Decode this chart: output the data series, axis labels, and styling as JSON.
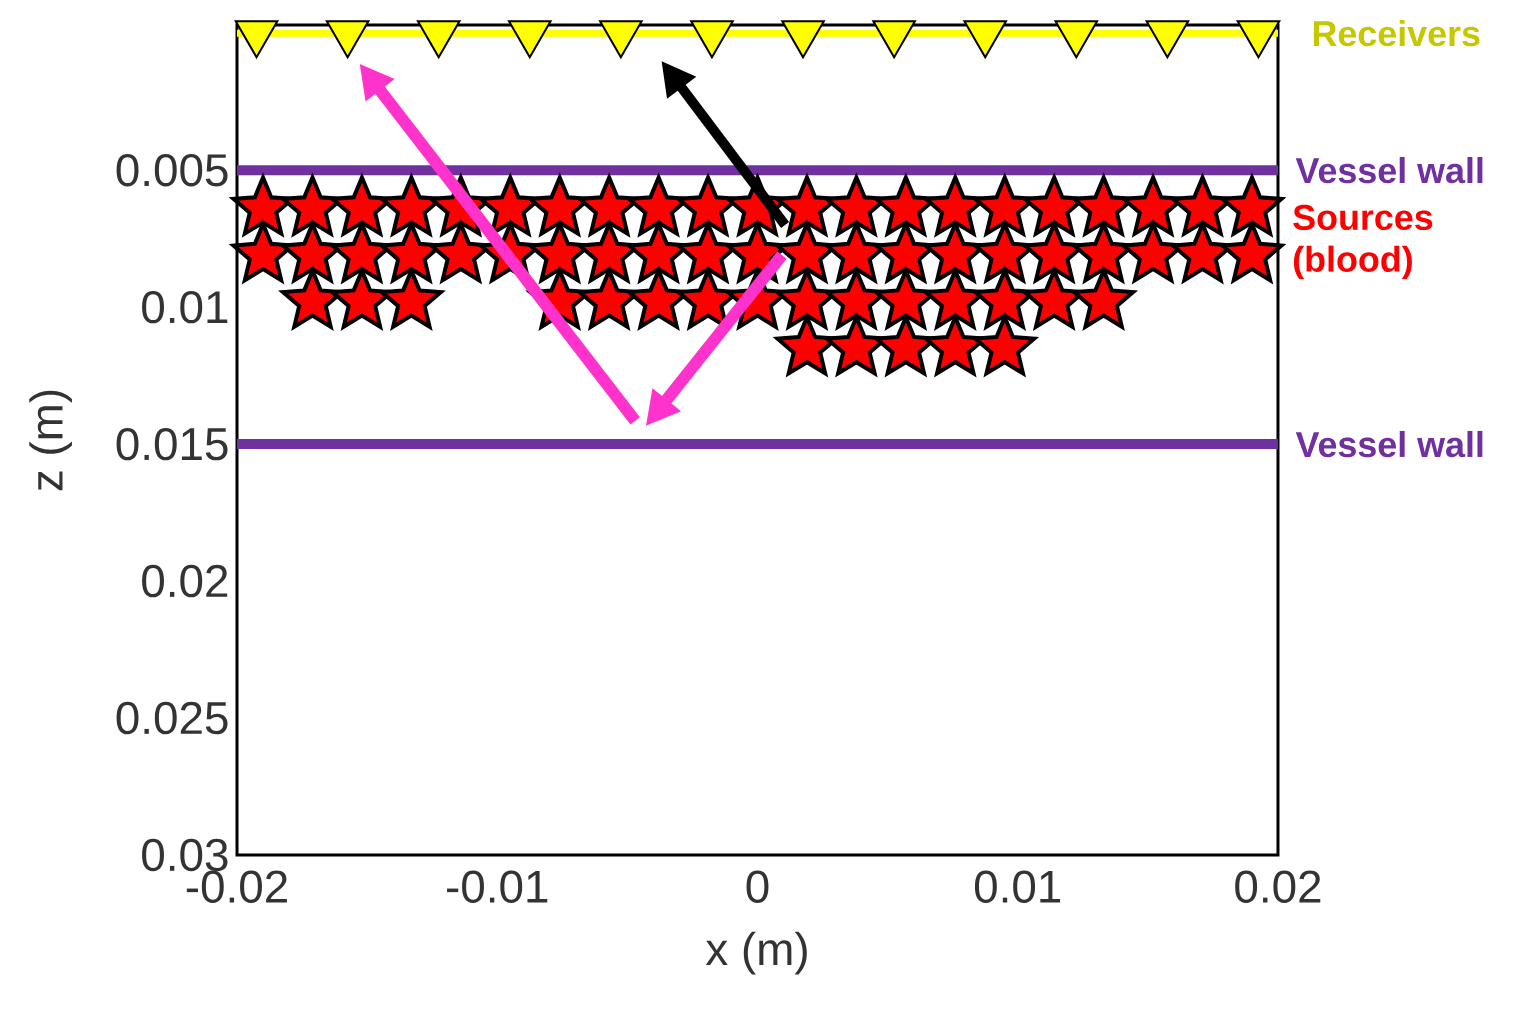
{
  "chart_data": {
    "type": "scatter",
    "xlabel": "x (m)",
    "ylabel": "z (m)",
    "xlim": [
      -0.02,
      0.02
    ],
    "ylim": [
      0.03,
      -0.0003
    ],
    "xticks": [
      -0.02,
      -0.01,
      0,
      0.01,
      0.02
    ],
    "yticks": [
      0.005,
      0.01,
      0.015,
      0.02,
      0.025,
      0.03
    ],
    "series": [
      {
        "name": "Receivers",
        "marker": "triangle",
        "color": "#ffff00",
        "x": [
          -0.01925,
          -0.01575,
          -0.01225,
          -0.00875,
          -0.00525,
          -0.00175,
          0.00175,
          0.00525,
          0.00875,
          0.01225,
          0.01575,
          0.01925
        ],
        "values": [
          0,
          0,
          0,
          0,
          0,
          0,
          0,
          0,
          0,
          0,
          0,
          0
        ]
      },
      {
        "name": "Sources (blood)",
        "marker": "star",
        "color": "#ff0000",
        "x": [
          -0.019,
          -0.0171,
          -0.0152,
          -0.0133,
          -0.0114,
          -0.0095,
          -0.0076,
          -0.0057,
          -0.0038,
          -0.0019,
          0,
          0.0019,
          0.0038,
          0.0057,
          0.0076,
          0.0095,
          0.0114,
          0.0133,
          0.0152,
          0.0171,
          0.019,
          -0.019,
          -0.0171,
          -0.0152,
          -0.0133,
          -0.0114,
          -0.0095,
          -0.0076,
          -0.0057,
          -0.0038,
          -0.0019,
          0,
          0.0019,
          0.0038,
          0.0057,
          0.0076,
          0.0095,
          0.0114,
          0.0133,
          0.0152,
          0.0171,
          0.019,
          -0.0171,
          -0.0152,
          -0.0133,
          -0.0076,
          -0.0057,
          -0.0038,
          -0.0019,
          0,
          0.0019,
          0.0038,
          0.0057,
          0.0076,
          0.0095,
          0.0114,
          0.0133,
          0.0019,
          0.0038,
          0.0057,
          0.0076,
          0.0095
        ],
        "values": [
          0.0064,
          0.0064,
          0.0064,
          0.0064,
          0.0064,
          0.0064,
          0.0064,
          0.0064,
          0.0064,
          0.0064,
          0.0064,
          0.0064,
          0.0064,
          0.0064,
          0.0064,
          0.0064,
          0.0064,
          0.0064,
          0.0064,
          0.0064,
          0.0064,
          0.0081,
          0.0081,
          0.0081,
          0.0081,
          0.0081,
          0.0081,
          0.0081,
          0.0081,
          0.0081,
          0.0081,
          0.0081,
          0.0081,
          0.0081,
          0.0081,
          0.0081,
          0.0081,
          0.0081,
          0.0081,
          0.0081,
          0.0081,
          0.0081,
          0.0098,
          0.0098,
          0.0098,
          0.0098,
          0.0098,
          0.0098,
          0.0098,
          0.0098,
          0.0098,
          0.0098,
          0.0098,
          0.0098,
          0.0098,
          0.0098,
          0.0098,
          0.0115,
          0.0115,
          0.0115,
          0.0115,
          0.0115
        ]
      }
    ],
    "ref_lines": [
      {
        "axis": "y",
        "value": 0,
        "color": "#ffff00"
      },
      {
        "axis": "y",
        "value": 0.005,
        "label": "Vessel wall",
        "color": "#7030a0"
      },
      {
        "axis": "y",
        "value": 0.015,
        "label": "Vessel wall",
        "color": "#7030a0"
      }
    ]
  }
}
